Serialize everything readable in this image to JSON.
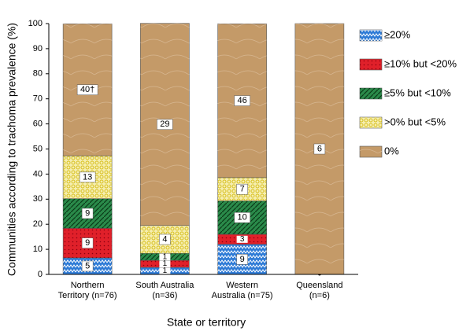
{
  "chart_data": {
    "type": "stacked_bar",
    "y_label": "Communities according to trachoma prevalence (%)",
    "x_label": "State or territory",
    "categories": [
      [
        "Northern",
        "Territory  (n=76)"
      ],
      [
        "South Australia",
        "(n=36)"
      ],
      [
        "Western",
        "Australia  (n=75)"
      ],
      [
        "Queensland",
        "(n=6)"
      ]
    ],
    "ylim": [
      0,
      100
    ],
    "yticks": [
      0,
      10,
      20,
      30,
      40,
      50,
      60,
      70,
      80,
      90,
      100
    ],
    "legend": "right",
    "series": [
      {
        "name": "≥20%",
        "color": "#2e7bd6",
        "values": [
          6.6,
          2.8,
          12,
          0
        ],
        "count_labels": [
          "5",
          "1",
          "9",
          "0"
        ]
      },
      {
        "name": "≥10% but <20%",
        "color": "#e0202a",
        "values": [
          11.8,
          2.8,
          4,
          0
        ],
        "count_labels": [
          "9",
          "1",
          "3",
          null
        ]
      },
      {
        "name": "≥5% but <10%",
        "color": "#2a8a4a",
        "values": [
          11.8,
          2.8,
          13.3,
          0
        ],
        "count_labels": [
          "9",
          "1",
          "10",
          null
        ]
      },
      {
        "name": ">0% but <5%",
        "color": "#f5eeb0",
        "values": [
          17.1,
          11.1,
          9.3,
          0
        ],
        "count_labels": [
          "13",
          "4",
          "7",
          null
        ]
      },
      {
        "name": "0%",
        "color": "#c49a68",
        "values": [
          52.6,
          80.6,
          61.3,
          100
        ],
        "count_labels": [
          "40†",
          "29",
          "46",
          "6"
        ]
      }
    ]
  }
}
